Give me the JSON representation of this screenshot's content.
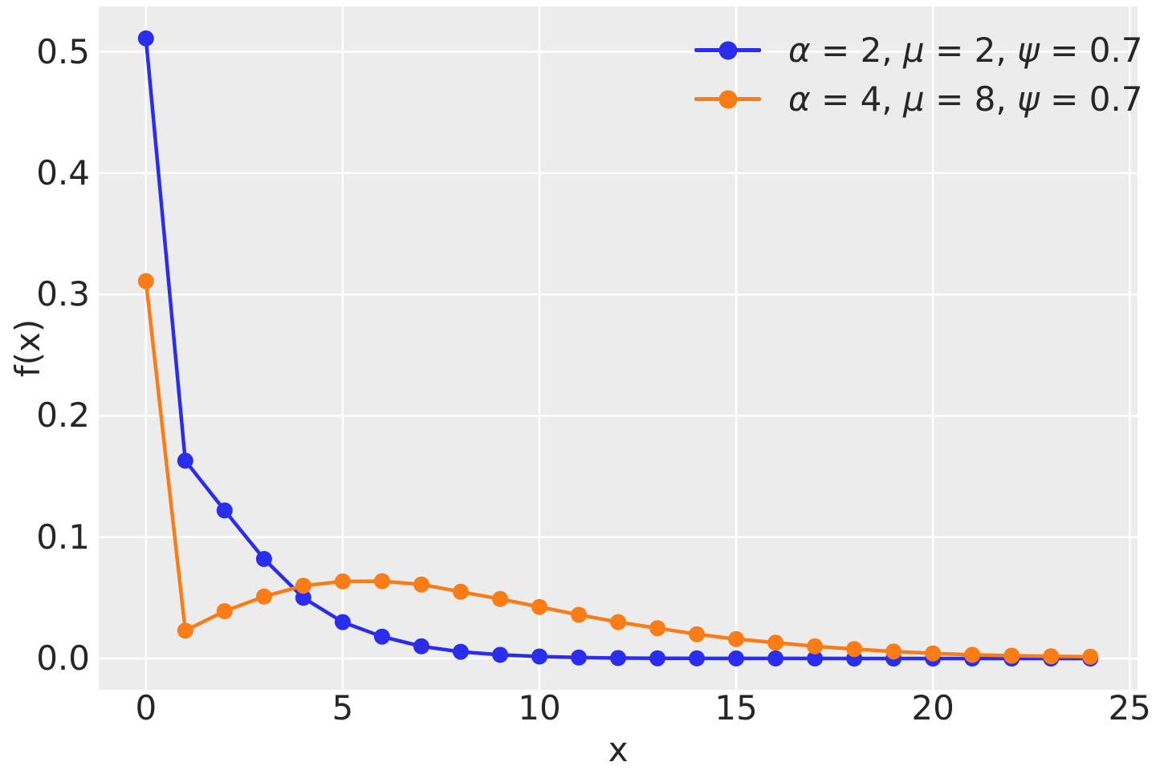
{
  "chart_data": {
    "type": "line",
    "title": "",
    "xlabel": "x",
    "ylabel": "f(x)",
    "xlim": [
      -1.2,
      25.2
    ],
    "ylim": [
      -0.0258,
      0.5374
    ],
    "grid": true,
    "legend_position": "upper right",
    "background_color": "#ececec",
    "grid_color": "#ffffff",
    "text_color": "#262626",
    "marker": "circle",
    "x_ticks": [
      0,
      5,
      10,
      15,
      20,
      25
    ],
    "x_tick_labels": [
      "0",
      "5",
      "10",
      "15",
      "20",
      "25"
    ],
    "y_ticks": [
      0,
      0.1,
      0.2,
      0.3,
      0.4,
      0.5
    ],
    "y_tick_labels": [
      "0.0",
      "0.1",
      "0.2",
      "0.3",
      "0.4",
      "0.5"
    ],
    "x": [
      0,
      1,
      2,
      3,
      4,
      5,
      6,
      7,
      8,
      9,
      10,
      11,
      12,
      13,
      14,
      15,
      16,
      17,
      18,
      19,
      20,
      21,
      22,
      23,
      24
    ],
    "series": [
      {
        "name": "alpha-2-mu-2-psi-0.7",
        "label": "α = 2, μ = 2, ψ = 0.7",
        "color": "#2a2eec",
        "values": [
          0.511,
          0.163,
          0.122,
          0.082,
          0.05,
          0.03,
          0.018,
          0.01,
          0.0055,
          0.003,
          0.0016,
          0.0008,
          0.0004,
          0.0002,
          0.0001,
          6e-05,
          3e-05,
          2e-05,
          1e-05,
          0,
          0,
          0,
          0,
          0,
          0
        ]
      },
      {
        "name": "alpha-4-mu-8-psi-0.7",
        "label": "α = 4, μ = 8, ψ = 0.7",
        "color": "#fa7c17",
        "values": [
          0.311,
          0.023,
          0.039,
          0.051,
          0.06,
          0.0635,
          0.0637,
          0.061,
          0.055,
          0.049,
          0.0425,
          0.036,
          0.03,
          0.025,
          0.02,
          0.016,
          0.013,
          0.01,
          0.0078,
          0.0058,
          0.0042,
          0.003,
          0.0023,
          0.0018,
          0.0015
        ]
      }
    ]
  }
}
